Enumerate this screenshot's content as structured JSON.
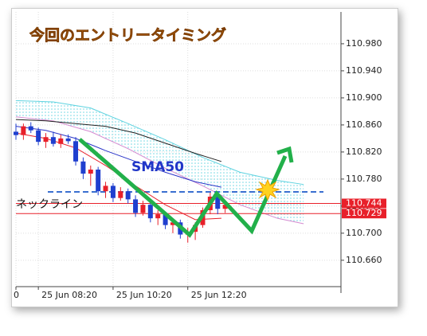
{
  "chart_data": {
    "type": "candlestick",
    "title": "今回のエントリータイミング",
    "annotations": {
      "indicator_label": "SMA50",
      "neckline_label": "ネックライン"
    },
    "xlim": [
      0,
      87
    ],
    "xticks": [
      {
        "value": 0,
        "label": "0"
      },
      {
        "value": 6,
        "label": "25 Jun 08:20"
      },
      {
        "value": 26,
        "label": "25 Jun 10:20"
      },
      {
        "value": 46,
        "label": "25 Jun 12:20"
      }
    ],
    "ylim": [
      110.621,
      111.027
    ],
    "yticks": [
      {
        "value": 110.66,
        "label": "110.660"
      },
      {
        "value": 110.7,
        "label": "110.700"
      },
      {
        "value": 110.74,
        "label": "110.740"
      },
      {
        "value": 110.78,
        "label": "110.780"
      },
      {
        "value": 110.82,
        "label": "110.820"
      },
      {
        "value": 110.86,
        "label": "110.860"
      },
      {
        "value": 110.9,
        "label": "110.900"
      },
      {
        "value": 110.94,
        "label": "110.940"
      },
      {
        "value": 110.98,
        "label": "110.980"
      }
    ],
    "grid": true,
    "up_color": "#e8202a",
    "down_color": "#1f3fcf",
    "candles": {
      "x": [
        0,
        2,
        4,
        6,
        8,
        10,
        12,
        14,
        16,
        18,
        20,
        22,
        24,
        26,
        28,
        30,
        32,
        34,
        36,
        38,
        40,
        42,
        44,
        46,
        48,
        50,
        52,
        54,
        56
      ],
      "open": [
        110.85,
        110.845,
        110.858,
        110.852,
        110.835,
        110.842,
        110.832,
        110.84,
        110.836,
        110.806,
        110.788,
        110.794,
        110.762,
        110.77,
        110.752,
        110.762,
        110.75,
        110.73,
        110.742,
        110.722,
        110.728,
        110.712,
        110.716,
        110.698,
        110.702,
        110.712,
        110.734,
        110.754,
        110.736
      ],
      "high": [
        110.862,
        110.862,
        110.864,
        110.856,
        110.848,
        110.85,
        110.846,
        110.846,
        110.842,
        110.812,
        110.8,
        110.798,
        110.776,
        110.774,
        110.768,
        110.766,
        110.756,
        110.748,
        110.746,
        110.734,
        110.732,
        110.722,
        110.72,
        110.708,
        110.716,
        110.738,
        110.76,
        110.758,
        110.746
      ],
      "low": [
        110.838,
        110.838,
        110.848,
        110.83,
        110.826,
        110.828,
        110.826,
        110.832,
        110.8,
        110.78,
        110.77,
        110.756,
        110.752,
        110.746,
        110.748,
        110.744,
        110.724,
        110.726,
        110.716,
        110.712,
        110.706,
        110.7,
        110.692,
        110.686,
        110.69,
        110.708,
        110.728,
        110.728,
        110.73
      ],
      "close": [
        110.845,
        110.858,
        110.852,
        110.835,
        110.842,
        110.832,
        110.84,
        110.836,
        110.806,
        110.788,
        110.794,
        110.762,
        110.77,
        110.752,
        110.762,
        110.75,
        110.73,
        110.742,
        110.722,
        110.728,
        110.712,
        110.716,
        110.698,
        110.702,
        110.712,
        110.734,
        110.754,
        110.736,
        110.742
      ]
    },
    "cloud": {
      "color": "#5fd3e0",
      "lower_color": "#d58ad0",
      "x": [
        0,
        10,
        20,
        30,
        40,
        50,
        60,
        70,
        77
      ],
      "upper": [
        110.896,
        110.894,
        110.885,
        110.862,
        110.838,
        110.812,
        110.79,
        110.778,
        110.772
      ],
      "lower": [
        110.872,
        110.866,
        110.85,
        110.825,
        110.796,
        110.77,
        110.742,
        110.722,
        110.714
      ]
    },
    "lines": [
      {
        "color": "#222222",
        "x": [
          0,
          8,
          16,
          24,
          32,
          40,
          48,
          55
        ],
        "values": [
          110.868,
          110.866,
          110.862,
          110.858,
          110.848,
          110.833,
          110.818,
          110.806
        ]
      },
      {
        "color": "#2b35c8",
        "x": [
          0,
          8,
          16,
          24,
          32,
          40,
          48,
          55
        ],
        "values": [
          110.858,
          110.852,
          110.84,
          110.822,
          110.806,
          110.79,
          110.776,
          110.768
        ]
      },
      {
        "color": "#e8202a",
        "x": [
          0,
          8,
          16,
          24,
          32,
          40,
          48,
          55
        ],
        "values": [
          110.848,
          110.84,
          110.826,
          110.8,
          110.77,
          110.742,
          110.72,
          110.722
        ]
      }
    ],
    "neckline": {
      "value": 110.761,
      "color": "#3a6fd0"
    },
    "price_lines": [
      {
        "value": 110.744,
        "label": "110.744"
      },
      {
        "value": 110.729,
        "label": "110.729"
      }
    ],
    "price_line_color": "#e8202a"
  }
}
